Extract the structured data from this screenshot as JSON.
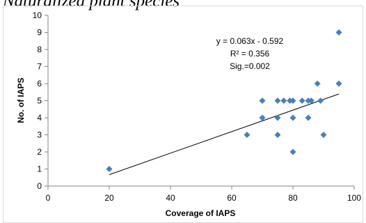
{
  "page": {
    "heading": "Naturalized plant species"
  },
  "chart_data": {
    "type": "scatter",
    "xlabel": "Coverage of IAPS",
    "ylabel": "No. of IAPS",
    "xlim": [
      0,
      100
    ],
    "ylim": [
      0,
      10
    ],
    "x_ticks": [
      0,
      20,
      40,
      60,
      80,
      100
    ],
    "y_ticks": [
      0,
      1,
      2,
      3,
      4,
      5,
      6,
      7,
      8,
      9,
      10
    ],
    "grid": false,
    "legend": "none",
    "marker_color": "#4a7ebb",
    "trendline_color": "#000000",
    "points": [
      {
        "x": 20,
        "y": 1
      },
      {
        "x": 65,
        "y": 3
      },
      {
        "x": 70,
        "y": 4
      },
      {
        "x": 70,
        "y": 5
      },
      {
        "x": 75,
        "y": 3
      },
      {
        "x": 75,
        "y": 4
      },
      {
        "x": 75,
        "y": 5
      },
      {
        "x": 77,
        "y": 5
      },
      {
        "x": 79,
        "y": 5
      },
      {
        "x": 80,
        "y": 2
      },
      {
        "x": 80,
        "y": 4
      },
      {
        "x": 80,
        "y": 5
      },
      {
        "x": 83,
        "y": 5
      },
      {
        "x": 85,
        "y": 4
      },
      {
        "x": 85,
        "y": 5
      },
      {
        "x": 86,
        "y": 5
      },
      {
        "x": 88,
        "y": 6
      },
      {
        "x": 89,
        "y": 5
      },
      {
        "x": 90,
        "y": 3
      },
      {
        "x": 95,
        "y": 6
      },
      {
        "x": 95,
        "y": 9
      }
    ],
    "trendline": {
      "x_start": 20,
      "x_end": 95,
      "slope": 0.063,
      "intercept": -0.592
    },
    "annotations": [
      "y = 0.063x - 0.592",
      "R² = 0.356",
      "Sig.=0.002"
    ]
  }
}
